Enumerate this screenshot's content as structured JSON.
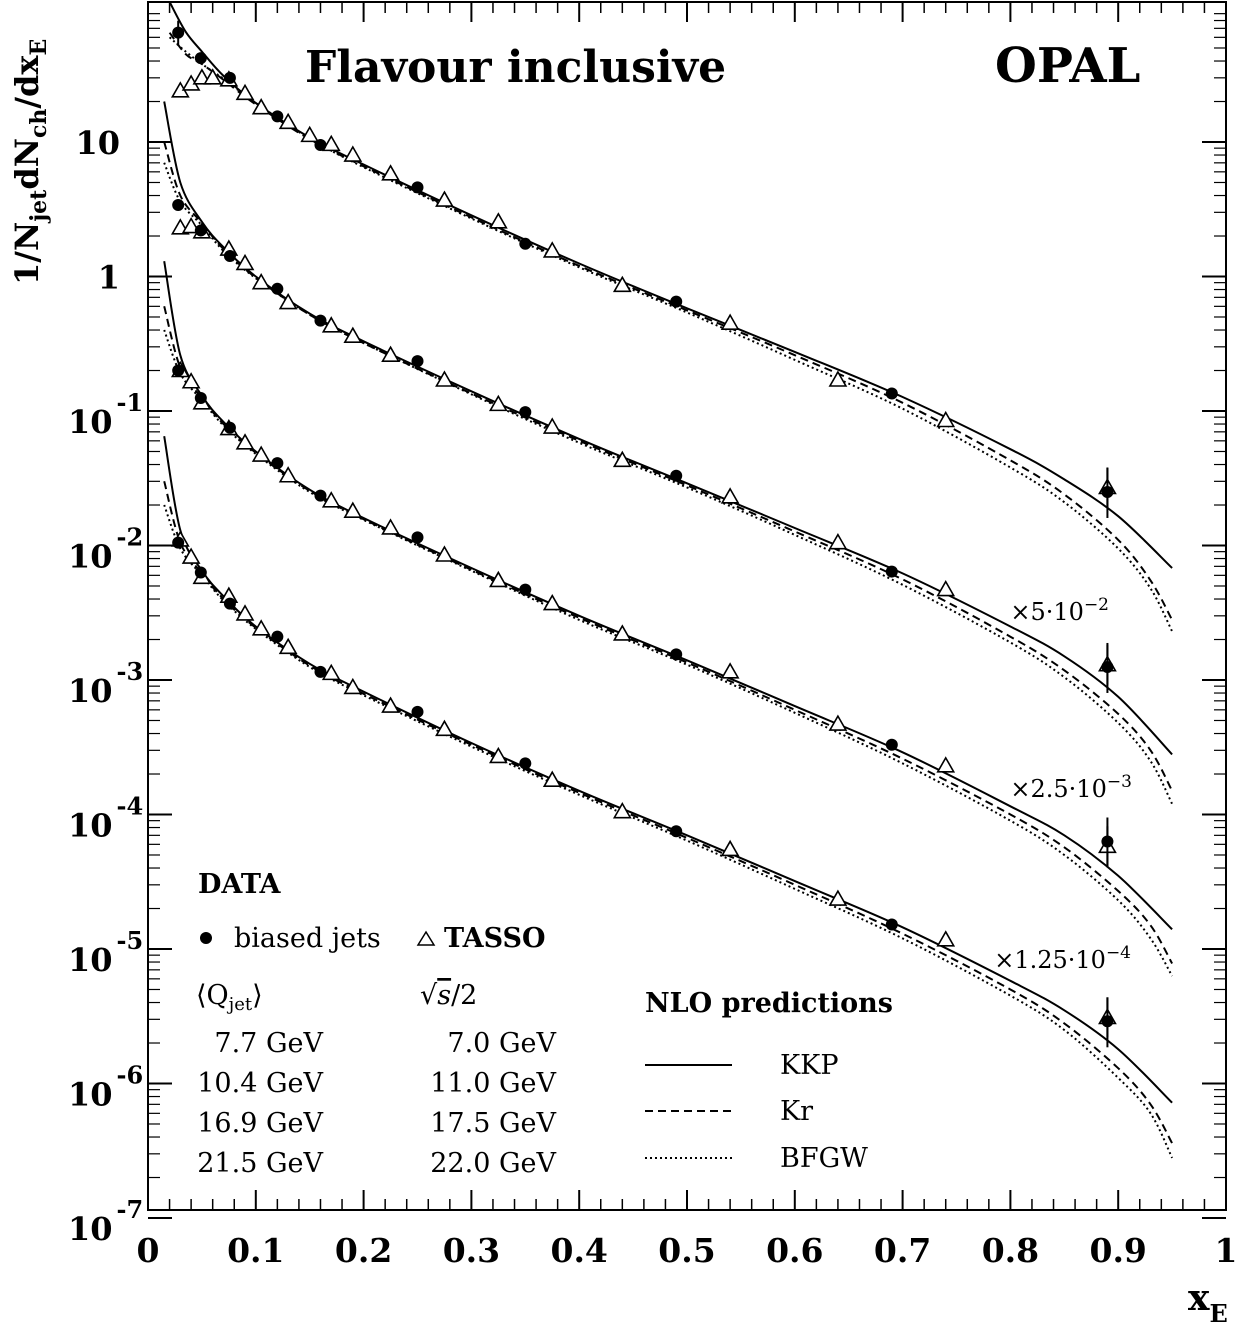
{
  "chart_data": {
    "type": "line",
    "title": "Flavour inclusive",
    "experiment": "OPAL",
    "xlabel": "x",
    "xlabel_sub": "E",
    "ylabel_parts": {
      "p1": "1/N",
      "s1": "jet",
      "p2": "dN",
      "s2": "ch",
      "p3": "/dx",
      "s3": "E"
    },
    "xlim": [
      0,
      1
    ],
    "ylim": [
      1e-07,
      100
    ],
    "y_scale": "log",
    "x_ticks": [
      "0",
      "0.1",
      "0.2",
      "0.3",
      "0.4",
      "0.5",
      "0.6",
      "0.7",
      "0.8",
      "0.9",
      "1"
    ],
    "y_ticks": [
      {
        "mant": "10",
        "exp": "",
        "val": 10
      },
      {
        "mant": "1",
        "exp": "",
        "val": 1
      },
      {
        "mant": "10",
        "exp": "-1",
        "val": 0.1
      },
      {
        "mant": "10",
        "exp": "-2",
        "val": 0.01
      },
      {
        "mant": "10",
        "exp": "-3",
        "val": 0.001
      },
      {
        "mant": "10",
        "exp": "-4",
        "val": 0.0001
      },
      {
        "mant": "10",
        "exp": "-5",
        "val": 1e-05
      },
      {
        "mant": "10",
        "exp": "-6",
        "val": 1e-06
      },
      {
        "mant": "10",
        "exp": "-7",
        "val": 1e-07
      }
    ],
    "scale_labels": [
      {
        "text": "×5·10",
        "exp": "−2",
        "at": [
          0.8,
          0.0028
        ]
      },
      {
        "text": "×2.5·10",
        "exp": "−3",
        "at": [
          0.8,
          0.000135
        ]
      },
      {
        "text": "×1.25·10",
        "exp": "−4",
        "at": [
          0.785,
          7.2e-06
        ]
      }
    ],
    "series": [
      {
        "group": "7.7 GeV / 7.0 GeV",
        "opal": {
          "x": [
            0.028,
            0.049,
            0.076,
            0.12,
            0.16,
            0.25,
            0.35,
            0.49,
            0.69,
            0.89
          ],
          "y": [
            65,
            42,
            30,
            15.5,
            9.5,
            4.6,
            1.75,
            0.65,
            0.135,
            0.025
          ]
        },
        "tasso": {
          "x": [
            0.03,
            0.04,
            0.05,
            0.06,
            0.075,
            0.09,
            0.105,
            0.13,
            0.15,
            0.17,
            0.19,
            0.225,
            0.275,
            0.325,
            0.375,
            0.44,
            0.54,
            0.64,
            0.74,
            0.89
          ],
          "y": [
            24,
            27,
            30,
            30,
            29,
            23,
            18,
            14,
            11.2,
            9.6,
            8.0,
            5.8,
            3.7,
            2.55,
            1.55,
            0.86,
            0.45,
            0.17,
            0.085,
            0.027
          ]
        },
        "kkp": {
          "x": [
            0.02,
            0.035,
            0.05,
            0.07,
            0.1,
            0.15,
            0.2,
            0.3,
            0.4,
            0.5,
            0.6,
            0.7,
            0.8,
            0.85,
            0.9,
            0.95
          ],
          "y": [
            110,
            66,
            47,
            31,
            19.5,
            10.8,
            6.8,
            2.85,
            1.25,
            0.58,
            0.275,
            0.127,
            0.052,
            0.031,
            0.0165,
            0.0068
          ]
        },
        "kr": {
          "x": [
            0.02,
            0.035,
            0.05,
            0.07,
            0.1,
            0.15,
            0.2,
            0.3,
            0.4,
            0.5,
            0.6,
            0.7,
            0.8,
            0.85,
            0.9,
            0.93,
            0.95
          ],
          "y": [
            65,
            45,
            38,
            29,
            19,
            10.5,
            6.6,
            2.75,
            1.2,
            0.56,
            0.26,
            0.115,
            0.043,
            0.024,
            0.011,
            0.0055,
            0.0028
          ]
        },
        "bfgw": {
          "x": [
            0.02,
            0.035,
            0.05,
            0.07,
            0.1,
            0.15,
            0.2,
            0.3,
            0.4,
            0.5,
            0.6,
            0.7,
            0.8,
            0.85,
            0.9,
            0.93,
            0.95
          ],
          "y": [
            60,
            47,
            38,
            29.5,
            19.5,
            10.6,
            6.5,
            2.7,
            1.17,
            0.54,
            0.24,
            0.104,
            0.038,
            0.021,
            0.0095,
            0.0048,
            0.0023
          ]
        }
      },
      {
        "group": "10.4 GeV / 11.0 GeV",
        "opal": {
          "x": [
            0.028,
            0.049,
            0.076,
            0.12,
            0.16,
            0.25,
            0.35,
            0.49,
            0.69,
            0.89
          ],
          "y": [
            3.4,
            2.2,
            1.42,
            0.81,
            0.47,
            0.235,
            0.098,
            0.033,
            0.0064,
            0.00125
          ]
        },
        "tasso": {
          "x": [
            0.03,
            0.04,
            0.05,
            0.075,
            0.09,
            0.105,
            0.13,
            0.17,
            0.19,
            0.225,
            0.275,
            0.325,
            0.375,
            0.44,
            0.54,
            0.64,
            0.74,
            0.89
          ],
          "y": [
            2.3,
            2.35,
            2.15,
            1.6,
            1.25,
            0.9,
            0.64,
            0.43,
            0.36,
            0.26,
            0.17,
            0.112,
            0.076,
            0.043,
            0.023,
            0.0105,
            0.0047,
            0.0013
          ]
        },
        "kkp": {
          "x": [
            0.015,
            0.03,
            0.05,
            0.07,
            0.1,
            0.15,
            0.2,
            0.3,
            0.4,
            0.5,
            0.6,
            0.7,
            0.8,
            0.85,
            0.9,
            0.95
          ],
          "y": [
            20,
            5.0,
            2.55,
            1.65,
            1.0,
            0.53,
            0.33,
            0.14,
            0.062,
            0.029,
            0.0135,
            0.0062,
            0.0025,
            0.0015,
            0.00075,
            0.00028
          ]
        },
        "kr": {
          "x": [
            0.015,
            0.03,
            0.05,
            0.07,
            0.1,
            0.15,
            0.2,
            0.3,
            0.4,
            0.5,
            0.6,
            0.7,
            0.8,
            0.85,
            0.9,
            0.93,
            0.95
          ],
          "y": [
            10,
            4.0,
            2.5,
            1.6,
            0.98,
            0.52,
            0.32,
            0.135,
            0.06,
            0.028,
            0.0127,
            0.0056,
            0.0021,
            0.00118,
            0.00056,
            0.0003,
            0.00015
          ]
        },
        "bfgw": {
          "x": [
            0.015,
            0.03,
            0.05,
            0.07,
            0.1,
            0.15,
            0.2,
            0.3,
            0.4,
            0.5,
            0.6,
            0.7,
            0.8,
            0.85,
            0.9,
            0.93,
            0.95
          ],
          "y": [
            7,
            3.6,
            2.4,
            1.55,
            0.97,
            0.52,
            0.32,
            0.133,
            0.058,
            0.027,
            0.012,
            0.0051,
            0.0019,
            0.00105,
            0.00048,
            0.00025,
            0.00012
          ]
        }
      },
      {
        "group": "16.9 GeV / 17.5 GeV",
        "opal": {
          "x": [
            0.028,
            0.049,
            0.076,
            0.12,
            0.16,
            0.25,
            0.35,
            0.49,
            0.69,
            0.89
          ],
          "y": [
            0.2,
            0.125,
            0.075,
            0.041,
            0.0235,
            0.0115,
            0.0047,
            0.00155,
            0.00033,
            6.3e-05
          ]
        },
        "tasso": {
          "x": [
            0.03,
            0.04,
            0.05,
            0.075,
            0.09,
            0.105,
            0.13,
            0.17,
            0.19,
            0.225,
            0.275,
            0.325,
            0.375,
            0.44,
            0.54,
            0.64,
            0.74,
            0.89
          ],
          "y": [
            0.2,
            0.165,
            0.115,
            0.074,
            0.058,
            0.047,
            0.033,
            0.0215,
            0.018,
            0.0135,
            0.0085,
            0.0055,
            0.0037,
            0.0022,
            0.00115,
            0.00047,
            0.00023,
            5.8e-05
          ]
        },
        "kkp": {
          "x": [
            0.015,
            0.03,
            0.05,
            0.07,
            0.1,
            0.15,
            0.2,
            0.3,
            0.4,
            0.5,
            0.6,
            0.7,
            0.8,
            0.85,
            0.9,
            0.95
          ],
          "y": [
            1.3,
            0.26,
            0.13,
            0.083,
            0.05,
            0.026,
            0.016,
            0.0068,
            0.003,
            0.0014,
            0.00064,
            0.00029,
            0.000115,
            7e-05,
            3.5e-05,
            1.4e-05
          ]
        },
        "kr": {
          "x": [
            0.015,
            0.03,
            0.05,
            0.07,
            0.1,
            0.15,
            0.2,
            0.3,
            0.4,
            0.5,
            0.6,
            0.7,
            0.8,
            0.85,
            0.9,
            0.93,
            0.95
          ],
          "y": [
            0.6,
            0.21,
            0.125,
            0.08,
            0.049,
            0.0255,
            0.0157,
            0.0066,
            0.0029,
            0.00135,
            0.0006,
            0.00026,
            0.0001,
            5.7e-05,
            2.7e-05,
            1.5e-05,
            7.8e-06
          ]
        },
        "bfgw": {
          "x": [
            0.015,
            0.03,
            0.05,
            0.07,
            0.1,
            0.15,
            0.2,
            0.3,
            0.4,
            0.5,
            0.6,
            0.7,
            0.8,
            0.85,
            0.9,
            0.93,
            0.95
          ],
          "y": [
            0.4,
            0.19,
            0.12,
            0.078,
            0.048,
            0.025,
            0.0155,
            0.0065,
            0.0028,
            0.0013,
            0.00057,
            0.00024,
            9e-05,
            5e-05,
            2.3e-05,
            1.2e-05,
            6.3e-06
          ]
        }
      },
      {
        "group": "21.5 GeV / 22.0 GeV",
        "opal": {
          "x": [
            0.028,
            0.049,
            0.076,
            0.12,
            0.16,
            0.25,
            0.35,
            0.49,
            0.69,
            0.89
          ],
          "y": [
            0.0105,
            0.0063,
            0.0037,
            0.0021,
            0.00115,
            0.00058,
            0.00024,
            7.5e-05,
            1.52e-05,
            2.9e-06
          ]
        },
        "tasso": {
          "x": [
            0.03,
            0.04,
            0.05,
            0.075,
            0.09,
            0.105,
            0.13,
            0.17,
            0.19,
            0.225,
            0.275,
            0.325,
            0.375,
            0.44,
            0.54,
            0.64,
            0.74,
            0.89
          ],
          "y": [
            0.011,
            0.0082,
            0.0058,
            0.0042,
            0.0031,
            0.0024,
            0.00175,
            0.00112,
            0.00088,
            0.00064,
            0.00043,
            0.00027,
            0.00018,
            0.000105,
            5.5e-05,
            2.35e-05,
            1.17e-05,
            3.1e-06
          ]
        },
        "kkp": {
          "x": [
            0.015,
            0.03,
            0.05,
            0.07,
            0.1,
            0.15,
            0.2,
            0.3,
            0.4,
            0.5,
            0.6,
            0.7,
            0.8,
            0.85,
            0.9,
            0.95
          ],
          "y": [
            0.065,
            0.013,
            0.0065,
            0.0042,
            0.0025,
            0.00132,
            0.00082,
            0.00034,
            0.00015,
            7e-05,
            3.2e-05,
            1.45e-05,
            5.8e-06,
            3.5e-06,
            1.8e-06,
            7.2e-07
          ]
        },
        "kr": {
          "x": [
            0.015,
            0.03,
            0.05,
            0.07,
            0.1,
            0.15,
            0.2,
            0.3,
            0.4,
            0.5,
            0.6,
            0.7,
            0.8,
            0.85,
            0.9,
            0.93,
            0.95
          ],
          "y": [
            0.03,
            0.0105,
            0.0062,
            0.004,
            0.00245,
            0.00128,
            0.00079,
            0.00033,
            0.000145,
            6.7e-05,
            3e-05,
            1.3e-05,
            5e-06,
            2.8e-06,
            1.3e-06,
            7e-07,
            3.6e-07
          ]
        },
        "bfgw": {
          "x": [
            0.015,
            0.03,
            0.05,
            0.07,
            0.1,
            0.15,
            0.2,
            0.3,
            0.4,
            0.5,
            0.6,
            0.7,
            0.8,
            0.85,
            0.9,
            0.93,
            0.95
          ],
          "y": [
            0.02,
            0.0095,
            0.006,
            0.0039,
            0.0024,
            0.00125,
            0.00077,
            0.00032,
            0.00014,
            6.4e-05,
            2.8e-05,
            1.2e-05,
            4.5e-06,
            2.5e-06,
            1.1e-06,
            6e-07,
            2.8e-07
          ]
        }
      }
    ],
    "legend": {
      "data_title": "DATA",
      "opal_label": "biased jets",
      "tasso_label": "TASSO",
      "opal_energy_header": "⟨Q",
      "opal_energy_header_sub": "jet",
      "opal_energy_header_close": "⟩",
      "tasso_energy_header_root": "√",
      "tasso_energy_header_s": "s",
      "tasso_energy_header_tail": "/2",
      "opal_energies": [
        "7.7 GeV",
        "10.4 GeV",
        "16.9 GeV",
        "21.5 GeV"
      ],
      "tasso_energies": [
        "7.0 GeV",
        "11.0 GeV",
        "17.5 GeV",
        "22.0 GeV"
      ],
      "nlo_title": "NLO predictions",
      "nlo_items": [
        "KKP",
        "Kr",
        "BFGW"
      ]
    }
  }
}
